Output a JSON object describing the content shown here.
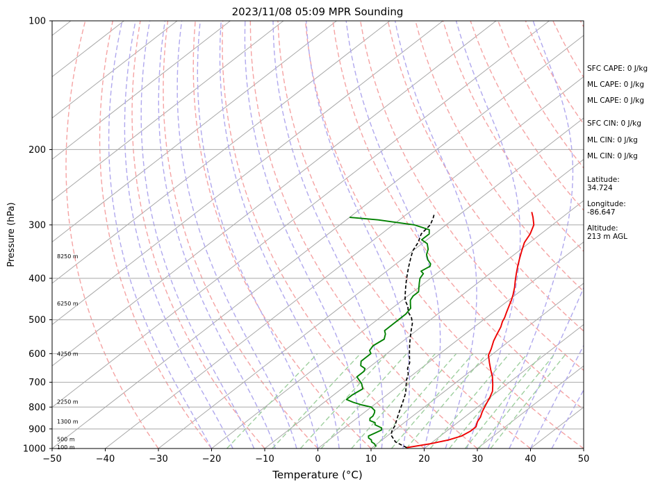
{
  "chart_data": {
    "type": "line",
    "title": "2023/11/08 05:09 MPR Sounding",
    "xlabel": "Temperature (°C)",
    "ylabel": "Pressure (hPa)",
    "xlim": [
      -50,
      50
    ],
    "ylim": [
      1000,
      100
    ],
    "y_scale": "log",
    "grid": true,
    "x_ticks": [
      "−50",
      "−40",
      "−30",
      "−20",
      "−10",
      "0",
      "10",
      "20",
      "30",
      "40",
      "50"
    ],
    "y_ticks": [
      "100",
      "200",
      "300",
      "400",
      "500",
      "600",
      "700",
      "800",
      "900",
      "1000"
    ],
    "height_labels": [
      {
        "p": 355,
        "text": "8250 m"
      },
      {
        "p": 458,
        "text": "6250 m"
      },
      {
        "p": 600,
        "text": "4250 m"
      },
      {
        "p": 777,
        "text": "2250 m"
      },
      {
        "p": 865,
        "text": "1300 m"
      },
      {
        "p": 950,
        "text": "500 m"
      },
      {
        "p": 993,
        "text": "100 m"
      }
    ],
    "series": [
      {
        "color": "#ee0000",
        "points": [
          [
            16.5,
            995
          ],
          [
            20,
            975
          ],
          [
            22.5,
            955
          ],
          [
            24,
            935
          ],
          [
            24.5,
            910
          ],
          [
            24.5,
            890
          ],
          [
            23.5,
            865
          ],
          [
            23,
            845
          ],
          [
            22,
            820
          ],
          [
            21,
            790
          ],
          [
            20,
            760
          ],
          [
            19,
            735
          ],
          [
            17.5,
            710
          ],
          [
            15.5,
            680
          ],
          [
            13.5,
            655
          ],
          [
            11.5,
            630
          ],
          [
            9.5,
            605
          ],
          [
            8.5,
            585
          ],
          [
            7,
            560
          ],
          [
            6,
            540
          ],
          [
            5,
            520
          ],
          [
            4,
            505
          ],
          [
            3.5,
            495
          ],
          [
            2.5,
            480
          ],
          [
            1.5,
            465
          ],
          [
            0.5,
            450
          ],
          [
            -0.5,
            437
          ],
          [
            -2,
            420
          ],
          [
            -3.5,
            405
          ],
          [
            -5,
            390
          ],
          [
            -6.5,
            375
          ],
          [
            -8,
            360
          ],
          [
            -9.5,
            345
          ],
          [
            -11,
            330
          ],
          [
            -12,
            315
          ],
          [
            -13.5,
            300
          ],
          [
            -15.5,
            288
          ],
          [
            -17,
            280
          ]
        ]
      },
      {
        "color": "#008000",
        "points": [
          [
            10.5,
            990
          ],
          [
            9.5,
            975
          ],
          [
            8.5,
            965
          ],
          [
            8,
            955
          ],
          [
            7,
            945
          ],
          [
            6.5,
            935
          ],
          [
            7,
            920
          ],
          [
            7.5,
            905
          ],
          [
            7,
            895
          ],
          [
            5,
            880
          ],
          [
            4.5,
            870
          ],
          [
            3,
            860
          ],
          [
            2.5,
            850
          ],
          [
            2.5,
            840
          ],
          [
            2,
            825
          ],
          [
            1.5,
            815
          ],
          [
            0,
            800
          ],
          [
            -2.5,
            790
          ],
          [
            -4.5,
            780
          ],
          [
            -6.5,
            768
          ],
          [
            -6.5,
            750
          ],
          [
            -6,
            725
          ],
          [
            -7.5,
            705
          ],
          [
            -9,
            690
          ],
          [
            -10,
            680
          ],
          [
            -10,
            660
          ],
          [
            -10.5,
            650
          ],
          [
            -12,
            640
          ],
          [
            -13,
            625
          ],
          [
            -13,
            615
          ],
          [
            -13,
            600
          ],
          [
            -14,
            590
          ],
          [
            -14.5,
            575
          ],
          [
            -14,
            555
          ],
          [
            -15,
            540
          ],
          [
            -16,
            530
          ],
          [
            -16,
            505
          ],
          [
            -16,
            485
          ],
          [
            -16.5,
            470
          ],
          [
            -17.5,
            460
          ],
          [
            -18.5,
            450
          ],
          [
            -19,
            440
          ],
          [
            -19,
            430
          ],
          [
            -20,
            420
          ],
          [
            -21,
            410
          ],
          [
            -22,
            400
          ],
          [
            -22.5,
            390
          ],
          [
            -23.5,
            385
          ],
          [
            -23,
            375
          ],
          [
            -23.5,
            370
          ],
          [
            -25,
            362
          ],
          [
            -26.5,
            352
          ],
          [
            -27.5,
            342
          ],
          [
            -29,
            332
          ],
          [
            -31,
            325
          ],
          [
            -31,
            315
          ],
          [
            -32,
            308
          ],
          [
            -36,
            300
          ],
          [
            -44,
            292
          ],
          [
            -50,
            288
          ]
        ]
      },
      {
        "color": "#000000",
        "dashed": true,
        "points": [
          [
            16.5,
            995
          ],
          [
            13,
            965
          ],
          [
            10.5,
            930
          ],
          [
            9.5,
            905
          ],
          [
            9,
            885
          ],
          [
            8,
            860
          ],
          [
            7,
            835
          ],
          [
            6,
            810
          ],
          [
            5,
            785
          ],
          [
            4,
            762
          ],
          [
            3,
            740
          ],
          [
            1.5,
            715
          ],
          [
            0,
            690
          ],
          [
            -1,
            670
          ],
          [
            -2.5,
            650
          ],
          [
            -3.5,
            630
          ],
          [
            -5,
            610
          ],
          [
            -6.5,
            590
          ],
          [
            -8,
            570
          ],
          [
            -9.5,
            550
          ],
          [
            -11,
            530
          ],
          [
            -12.5,
            510
          ],
          [
            -14,
            495
          ],
          [
            -16,
            480
          ],
          [
            -17.5,
            465
          ],
          [
            -19.5,
            450
          ],
          [
            -21,
            435
          ],
          [
            -22.5,
            420
          ],
          [
            -24,
            405
          ],
          [
            -25.5,
            390
          ],
          [
            -27,
            375
          ],
          [
            -28.5,
            360
          ],
          [
            -30,
            345
          ],
          [
            -31,
            330
          ],
          [
            -32.5,
            315
          ],
          [
            -33,
            300
          ],
          [
            -34,
            290
          ],
          [
            -35,
            282
          ]
        ]
      }
    ]
  },
  "side_panel": {
    "sfc_cape": "SFC CAPE: 0 J/kg",
    "ml_cape_1": "ML CAPE: 0 J/kg",
    "ml_cape_2": "ML CAPE: 0 J/kg",
    "sfc_cin": "SFC CIN: 0 J/kg",
    "ml_cin_1": "ML CIN: 0 J/kg",
    "ml_cin_2": "ML CIN: 0 J/kg",
    "latitude_label": "Latitude:",
    "latitude_value": "34.724",
    "longitude_label": "Longitude:",
    "longitude_value": "-86.647",
    "altitude_label": "Altitude:",
    "altitude_value": "213 m AGL"
  },
  "colors": {
    "isotherm": "#a8a8a8",
    "dry_adiabat": "#f5a3a3",
    "moist_adiabat": "#b0a8ee",
    "mixing_ratio": "#9ecf9e"
  }
}
